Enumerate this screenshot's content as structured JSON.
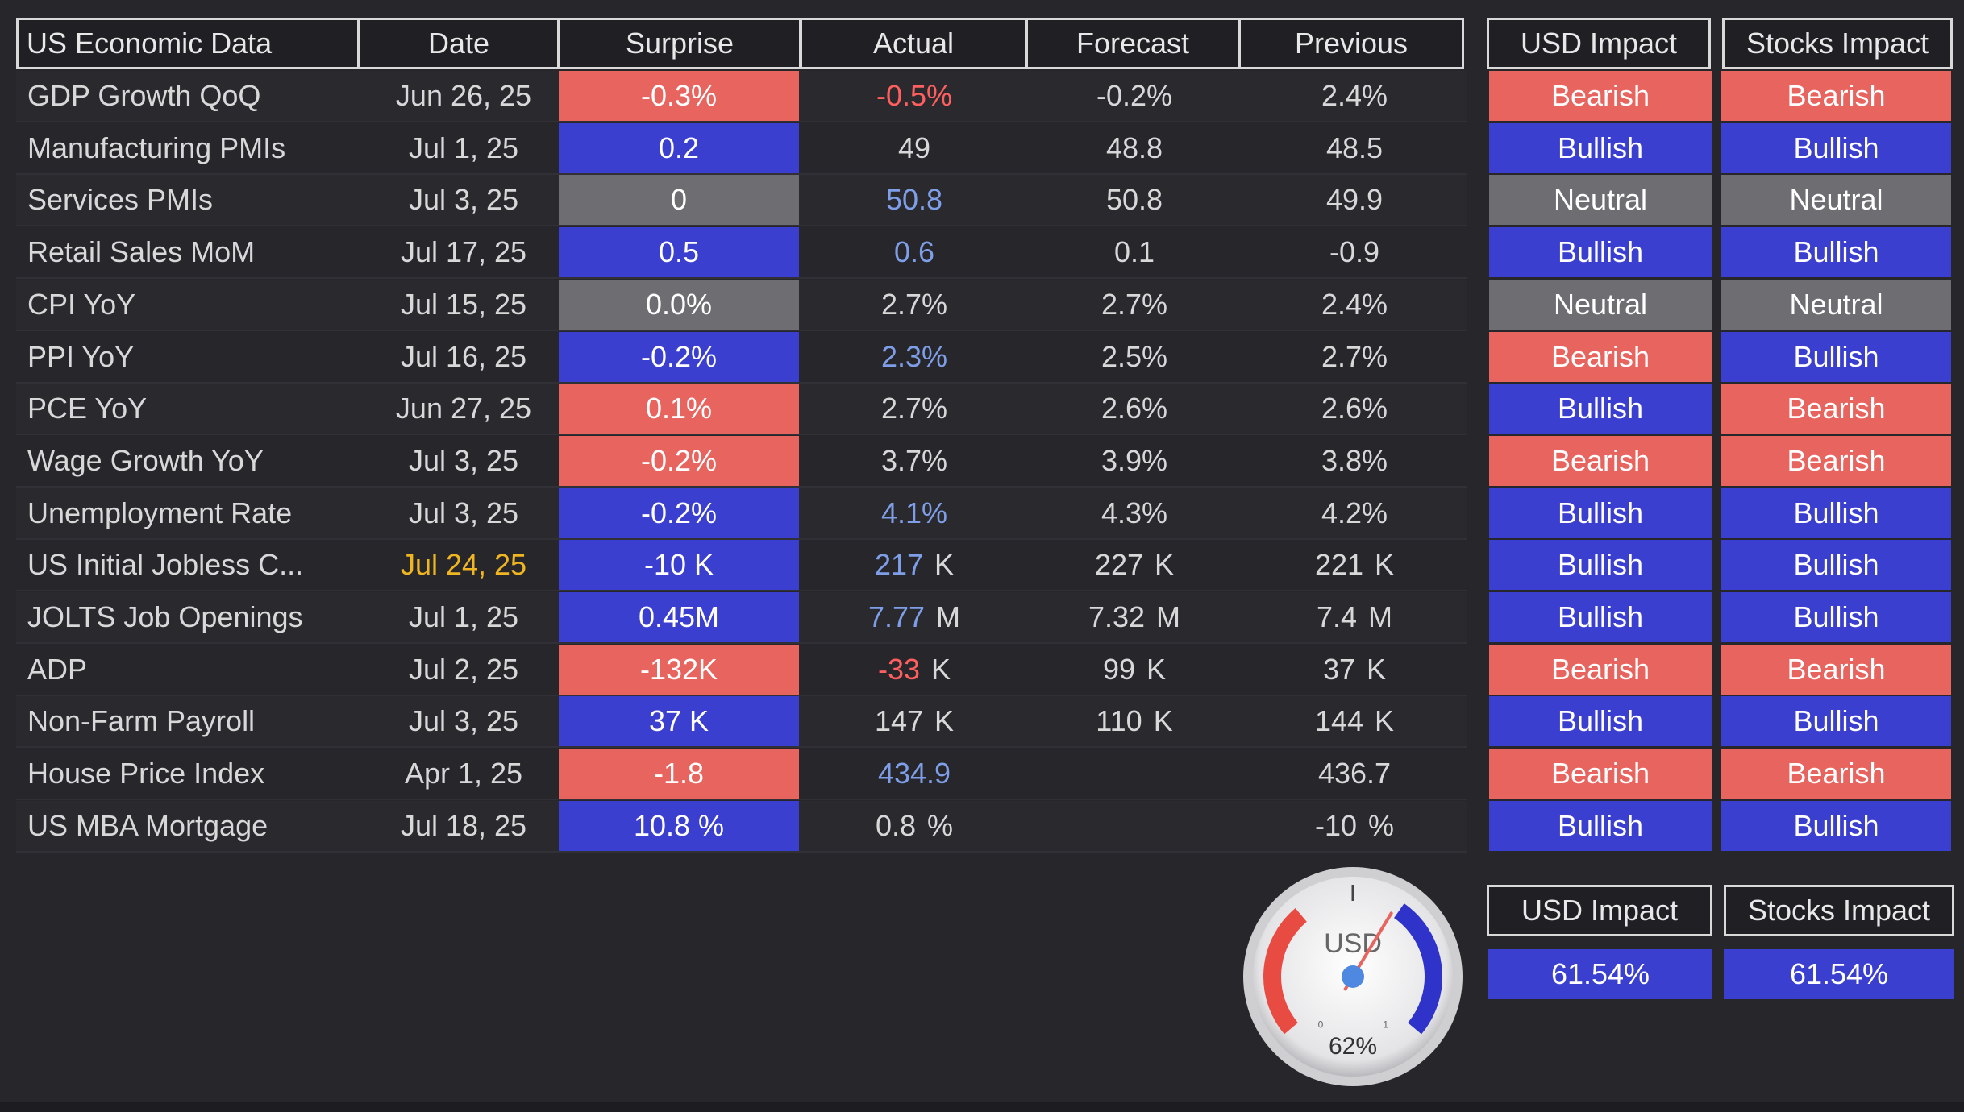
{
  "colors": {
    "bearish": "#e8645f",
    "bullish": "#3a3fd0",
    "neutral": "#6e6e72",
    "date_highlight": "#f0b622",
    "actual_red": "#ff5f5f",
    "actual_blue": "#7f9ee8"
  },
  "headers": {
    "name": "US Economic Data",
    "date": "Date",
    "surprise": "Surprise",
    "actual": "Actual",
    "forecast": "Forecast",
    "previous": "Previous",
    "usd": "USD Impact",
    "stocks": "Stocks Impact"
  },
  "rows": [
    {
      "name": "GDP Growth QoQ",
      "date": "Jun 26, 25",
      "surprise": "-0.3%",
      "surprise_tone": "bearish",
      "actual": "-0.5%",
      "actual_unit": "",
      "actual_tone": "red",
      "forecast": "-0.2%",
      "forecast_unit": "",
      "previous": "2.4%",
      "previous_unit": "",
      "usd": "Bearish",
      "stocks": "Bearish"
    },
    {
      "name": "Manufacturing PMIs",
      "date": "Jul 1, 25",
      "surprise": "0.2",
      "surprise_tone": "bullish",
      "actual": "49",
      "actual_unit": "",
      "actual_tone": "normal",
      "forecast": "48.8",
      "forecast_unit": "",
      "previous": "48.5",
      "previous_unit": "",
      "usd": "Bullish",
      "stocks": "Bullish"
    },
    {
      "name": "Services PMIs",
      "date": "Jul 3, 25",
      "surprise": "0",
      "surprise_tone": "neutral",
      "actual": "50.8",
      "actual_unit": "",
      "actual_tone": "blue",
      "forecast": "50.8",
      "forecast_unit": "",
      "previous": "49.9",
      "previous_unit": "",
      "usd": "Neutral",
      "stocks": "Neutral"
    },
    {
      "name": "Retail Sales MoM",
      "date": "Jul 17, 25",
      "surprise": "0.5",
      "surprise_tone": "bullish",
      "actual": "0.6",
      "actual_unit": "",
      "actual_tone": "blue",
      "forecast": "0.1",
      "forecast_unit": "",
      "previous": "-0.9",
      "previous_unit": "",
      "usd": "Bullish",
      "stocks": "Bullish"
    },
    {
      "name": "CPI YoY",
      "date": "Jul 15, 25",
      "surprise": "0.0%",
      "surprise_tone": "neutral",
      "actual": "2.7%",
      "actual_unit": "",
      "actual_tone": "normal",
      "forecast": "2.7%",
      "forecast_unit": "",
      "previous": "2.4%",
      "previous_unit": "",
      "usd": "Neutral",
      "stocks": "Neutral"
    },
    {
      "name": "PPI YoY",
      "date": "Jul 16, 25",
      "surprise": "-0.2%",
      "surprise_tone": "bullish",
      "actual": "2.3%",
      "actual_unit": "",
      "actual_tone": "blue",
      "forecast": "2.5%",
      "forecast_unit": "",
      "previous": "2.7%",
      "previous_unit": "",
      "usd": "Bearish",
      "stocks": "Bullish"
    },
    {
      "name": "PCE YoY",
      "date": "Jun 27, 25",
      "surprise": "0.1%",
      "surprise_tone": "bearish",
      "actual": "2.7%",
      "actual_unit": "",
      "actual_tone": "normal",
      "forecast": "2.6%",
      "forecast_unit": "",
      "previous": "2.6%",
      "previous_unit": "",
      "usd": "Bullish",
      "stocks": "Bearish"
    },
    {
      "name": "Wage Growth YoY",
      "date": "Jul 3, 25",
      "surprise": "-0.2%",
      "surprise_tone": "bearish",
      "actual": "3.7%",
      "actual_unit": "",
      "actual_tone": "normal",
      "forecast": "3.9%",
      "forecast_unit": "",
      "previous": "3.8%",
      "previous_unit": "",
      "usd": "Bearish",
      "stocks": "Bearish"
    },
    {
      "name": "Unemployment Rate",
      "date": "Jul 3, 25",
      "surprise": "-0.2%",
      "surprise_tone": "bullish",
      "actual": "4.1%",
      "actual_unit": "",
      "actual_tone": "blue",
      "forecast": "4.3%",
      "forecast_unit": "",
      "previous": "4.2%",
      "previous_unit": "",
      "usd": "Bullish",
      "stocks": "Bullish"
    },
    {
      "name": "US Initial Jobless C...",
      "date": "Jul 24, 25",
      "date_highlight": true,
      "surprise": "-10 K",
      "surprise_tone": "bullish",
      "actual": "217",
      "actual_unit": "K",
      "actual_tone": "blue",
      "forecast": "227",
      "forecast_unit": "K",
      "previous": "221",
      "previous_unit": "K",
      "usd": "Bullish",
      "stocks": "Bullish"
    },
    {
      "name": "JOLTS Job Openings",
      "date": "Jul 1, 25",
      "surprise": "0.45M",
      "surprise_tone": "bullish",
      "actual": "7.77",
      "actual_unit": "M",
      "actual_tone": "blue",
      "forecast": "7.32",
      "forecast_unit": "M",
      "previous": "7.4",
      "previous_unit": "M",
      "usd": "Bullish",
      "stocks": "Bullish"
    },
    {
      "name": "ADP",
      "date": "Jul 2, 25",
      "surprise": "-132K",
      "surprise_tone": "bearish",
      "actual": "-33",
      "actual_unit": "K",
      "actual_tone": "red",
      "forecast": "99",
      "forecast_unit": "K",
      "previous": "37",
      "previous_unit": "K",
      "usd": "Bearish",
      "stocks": "Bearish"
    },
    {
      "name": "Non-Farm Payroll",
      "date": "Jul 3, 25",
      "surprise": "37  K",
      "surprise_tone": "bullish",
      "actual": "147",
      "actual_unit": "K",
      "actual_tone": "normal",
      "forecast": "110",
      "forecast_unit": "K",
      "previous": "144",
      "previous_unit": "K",
      "usd": "Bullish",
      "stocks": "Bullish"
    },
    {
      "name": "House Price Index",
      "date": "Apr 1, 25",
      "surprise": "-1.8",
      "surprise_tone": "bearish",
      "actual": "434.9",
      "actual_unit": "",
      "actual_tone": "blue",
      "forecast": "",
      "forecast_unit": "",
      "previous": "436.7",
      "previous_unit": "",
      "usd": "Bearish",
      "stocks": "Bearish"
    },
    {
      "name": "US MBA Mortgage",
      "date": "Jul 18, 25",
      "surprise": "10.8 %",
      "surprise_tone": "bullish",
      "actual": "0.8",
      "actual_unit": "%",
      "actual_tone": "normal",
      "forecast": "",
      "forecast_unit": "",
      "previous": "-10",
      "previous_unit": "%",
      "usd": "Bullish",
      "stocks": "Bullish"
    }
  ],
  "summary": {
    "usd_label": "USD Impact",
    "stocks_label": "Stocks Impact",
    "usd_value": "61.54%",
    "stocks_value": "61.54%"
  },
  "gauge": {
    "label": "USD",
    "value_text": "62%",
    "value": 0.62,
    "min_label": "0",
    "max_label": "1"
  }
}
